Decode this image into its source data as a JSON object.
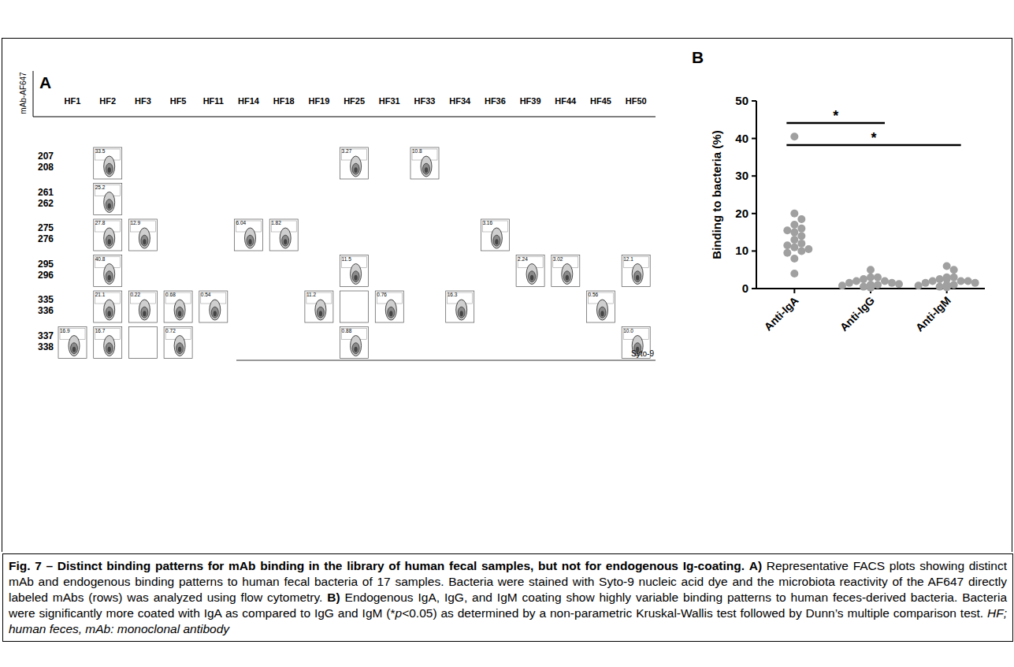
{
  "chart_data": [
    {
      "type": "facs_grid",
      "panel": "A",
      "y_label": "mAb-AF647",
      "x_label": "Syto-9",
      "columns": [
        "HF1",
        "HF2",
        "HF3",
        "HF5",
        "HF11",
        "HF14",
        "HF18",
        "HF19",
        "HF25",
        "HF31",
        "HF33",
        "HF34",
        "HF36",
        "HF39",
        "HF44",
        "HF45",
        "HF50"
      ],
      "rows": [
        {
          "labels": [
            "207",
            "208"
          ],
          "cells": [
            {
              "sample": "HF2",
              "value": 33.5
            },
            {
              "sample": "HF25",
              "value": 3.27
            },
            {
              "sample": "HF33",
              "value": 10.8
            }
          ]
        },
        {
          "labels": [
            "261",
            "262"
          ],
          "cells": [
            {
              "sample": "HF2",
              "value": 25.2
            }
          ]
        },
        {
          "labels": [
            "275",
            "276"
          ],
          "cells": [
            {
              "sample": "HF2",
              "value": 27.8
            },
            {
              "sample": "HF3",
              "value": 12.9
            },
            {
              "sample": "HF14",
              "value": 6.04
            },
            {
              "sample": "HF18",
              "value": 1.82
            },
            {
              "sample": "HF36",
              "value": 3.16
            }
          ]
        },
        {
          "labels": [
            "295",
            "296"
          ],
          "cells": [
            {
              "sample": "HF2",
              "value": 40.8
            },
            {
              "sample": "HF25",
              "value": 11.5
            },
            {
              "sample": "HF39",
              "value": 2.24
            },
            {
              "sample": "HF44",
              "value": 3.02
            },
            {
              "sample": "HF50",
              "value": 12.1
            }
          ]
        },
        {
          "labels": [
            "335",
            "336"
          ],
          "cells": [
            {
              "sample": "HF2",
              "value": 21.1
            },
            {
              "sample": "HF3",
              "value": 0.22
            },
            {
              "sample": "HF5",
              "value": 0.68
            },
            {
              "sample": "HF11",
              "value": 0.54
            },
            {
              "sample": "HF19",
              "value": 11.2
            },
            {
              "sample": "HF25",
              "value": null
            },
            {
              "sample": "HF31",
              "value": 0.76
            },
            {
              "sample": "HF34",
              "value": 16.3
            },
            {
              "sample": "HF45",
              "value": 0.56
            }
          ]
        },
        {
          "labels": [
            "337",
            "338"
          ],
          "cells": [
            {
              "sample": "HF1",
              "value": 16.9
            },
            {
              "sample": "HF2",
              "value": 16.7
            },
            {
              "sample": "HF3",
              "value": null
            },
            {
              "sample": "HF5",
              "value": 0.72
            },
            {
              "sample": "HF25",
              "value": 0.88
            },
            {
              "sample": "HF50",
              "value": 10,
              "value_label": "10.0"
            }
          ]
        }
      ]
    },
    {
      "type": "scatter",
      "panel": "B",
      "y_label": "Binding to bacteria (%)",
      "categories": [
        "Anti-IgA",
        "Anti-IgG",
        "Anti-IgM"
      ],
      "values": [
        [
          40.5,
          20,
          18.5,
          17,
          16,
          15.5,
          15,
          14,
          13,
          12,
          11.5,
          11,
          10.5,
          10,
          9.5,
          8,
          4
        ],
        [
          5,
          3,
          3,
          2.5,
          2,
          2,
          1.5,
          1.5,
          1.2,
          1,
          1,
          0.8,
          0.5,
          0.5,
          0.3,
          0.2,
          1
        ],
        [
          6,
          5,
          3,
          3,
          2.5,
          2,
          2,
          2,
          1.5,
          1.5,
          1,
          1,
          0.8,
          0.5,
          0.5,
          0.3,
          2.5
        ]
      ],
      "color": "#a0a0a0",
      "marker": "circle",
      "ylim": [
        0,
        50
      ],
      "yticks": [
        0,
        10,
        20,
        30,
        40,
        50
      ],
      "grid": false,
      "comparisons": [
        {
          "from": "Anti-IgA",
          "to": "Anti-IgG",
          "label": "*"
        },
        {
          "from": "Anti-IgA",
          "to": "Anti-IgM",
          "label": "*"
        }
      ]
    }
  ],
  "caption": {
    "title": "Fig. 7 – Distinct binding patterns for mAb binding in the library of human fecal samples, but not for endogenous Ig-coating.",
    "parts": [
      {
        "label": "A)",
        "text_runs": [
          "Representative FACS plots showing distinct mAb and endogenous binding patterns to human fecal bacteria of 17 samples. Bacteria were stained with Syto-9 nucleic acid dye and the microbiota reactivity of the AF647 directly labeled mAbs (rows) was analyzed using flow cytometry."
        ]
      },
      {
        "label": "B)",
        "text_runs": [
          "Endogenous IgA, IgG, and IgM coating show highly variable binding patterns to human feces-derived bacteria. Bacteria were significantly more coated with IgA as compared to IgG and IgM (*",
          "p",
          "<0.05) as determined by a non-parametric Kruskal-Wallis test followed by Dunn’s multiple comparison test."
        ]
      }
    ],
    "abbreviations": "HF; human feces, mAb: monoclonal antibody"
  }
}
